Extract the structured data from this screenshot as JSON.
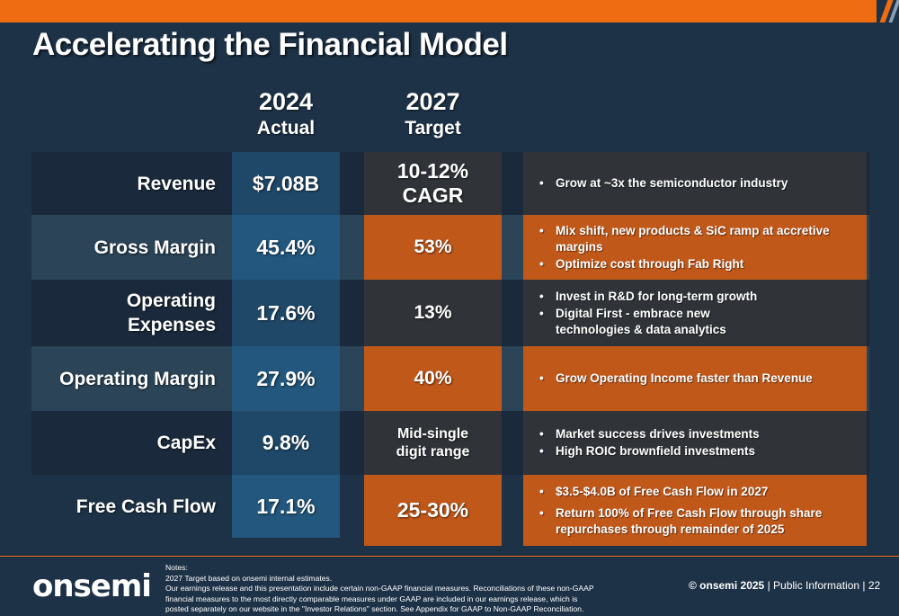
{
  "title": "Accelerating the Financial Model",
  "columns": {
    "actual": {
      "year": "2024",
      "label": "Actual"
    },
    "target": {
      "year": "2027",
      "label": "Target"
    }
  },
  "rows": [
    {
      "metric": "Revenue",
      "actual": "$7.08B",
      "target": "10-12% CAGR",
      "notes": [
        "Grow at ~3x the semiconductor industry"
      ]
    },
    {
      "metric": "Gross Margin",
      "actual": "45.4%",
      "target": "53%",
      "notes": [
        "Mix shift, new products & SiC ramp at accretive margins",
        "Optimize cost through Fab Right"
      ]
    },
    {
      "metric": "Operating Expenses",
      "actual": "17.6%",
      "target": "13%",
      "notes": [
        "Invest in R&D for long-term growth",
        "Digital First - embrace new technologies & data analytics"
      ]
    },
    {
      "metric": "Operating Margin",
      "actual": "27.9%",
      "target": "40%",
      "notes": [
        "Grow Operating Income faster than Revenue"
      ]
    },
    {
      "metric": "CapEx",
      "actual": "9.8%",
      "target": "Mid-single digit range",
      "notes": [
        "Market success drives investments",
        "High ROIC brownfield investments"
      ]
    },
    {
      "metric": "Free Cash Flow",
      "actual": "17.1%",
      "target": "25-30%",
      "notes": [
        "$3.5-$4.0B of Free Cash Flow in 2027",
        "Return 100% of Free Cash Flow through share repurchases through remainder of 2025"
      ]
    }
  ],
  "footer": {
    "logo": "onsemi",
    "notes_heading": "Notes:",
    "note_1": "2027 Target based on onsemi internal estimates.",
    "note_2": "Our earnings release and this presentation include certain non-GAAP financial measures. Reconciliations of these non-GAAP financial measures to the most directly comparable measures under GAAP are included in our earnings release, which is posted separately on our website in the \"Investor Relations\" section. See Appendix for GAAP to Non-GAAP Reconciliation.",
    "copyright": "© onsemi 2025",
    "classification": "| Public Information |",
    "page_number": "22"
  },
  "colors": {
    "accent": "#ef6c12",
    "background": "#1d3247",
    "orange_cell": "#c0581a",
    "blue_cell": "#23577d"
  }
}
